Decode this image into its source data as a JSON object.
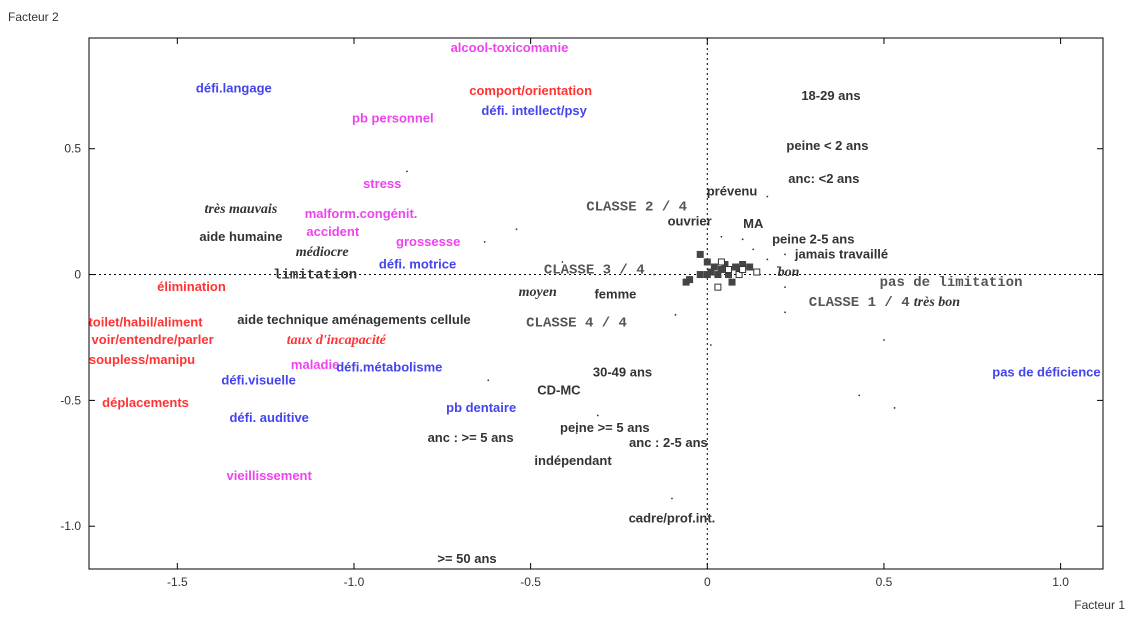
{
  "chart_data": {
    "type": "scatter",
    "xlabel": "Facteur 1",
    "ylabel": "Facteur 2",
    "xlim": [
      -1.75,
      1.12
    ],
    "ylim": [
      -1.17,
      0.94
    ],
    "x_ticks": [
      -1.5,
      -1.0,
      -0.5,
      0,
      0.5,
      1.0
    ],
    "x_tick_labels": [
      "-1.5",
      "-1.0",
      "-0.5",
      "0",
      "0.5",
      "1.0"
    ],
    "y_ticks": [
      -1.0,
      -0.5,
      0,
      0.5
    ],
    "y_tick_labels": [
      "-1.0",
      "-0.5",
      "0",
      "0.5"
    ],
    "reference_lines": "dashed lines at x=0 and y=0",
    "colors": {
      "red": "#ff3333",
      "blue": "#4444ee",
      "magenta": "#ee44ee",
      "dark": "#333333",
      "gray": "#555555"
    },
    "labels": [
      {
        "text": "alcool-toxicomanie",
        "x": -0.56,
        "y": 0.9,
        "color": "magenta",
        "style": "sans"
      },
      {
        "text": "défi.langage",
        "x": -1.34,
        "y": 0.74,
        "color": "blue",
        "style": "sans"
      },
      {
        "text": "comport/orientation",
        "x": -0.5,
        "y": 0.73,
        "color": "red",
        "style": "sans"
      },
      {
        "text": "18-29 ans",
        "x": 0.35,
        "y": 0.71,
        "color": "dark",
        "style": "sans"
      },
      {
        "text": "défi. intellect/psy",
        "x": -0.49,
        "y": 0.65,
        "color": "blue",
        "style": "sans"
      },
      {
        "text": "pb personnel",
        "x": -0.89,
        "y": 0.62,
        "color": "magenta",
        "style": "sans"
      },
      {
        "text": "peine < 2 ans",
        "x": 0.34,
        "y": 0.51,
        "color": "dark",
        "style": "sans"
      },
      {
        "text": "anc: <2 ans",
        "x": 0.33,
        "y": 0.38,
        "color": "dark",
        "style": "sans"
      },
      {
        "text": "stress",
        "x": -0.92,
        "y": 0.36,
        "color": "magenta",
        "style": "sans"
      },
      {
        "text": "prévenu",
        "x": 0.07,
        "y": 0.33,
        "color": "dark",
        "style": "sans"
      },
      {
        "text": "CLASSE 2 / 4",
        "x": -0.2,
        "y": 0.27,
        "color": "gray",
        "style": "mono"
      },
      {
        "text": "très mauvais",
        "x": -1.32,
        "y": 0.26,
        "color": "dark",
        "style": "script"
      },
      {
        "text": "malform.congénit.",
        "x": -0.98,
        "y": 0.24,
        "color": "magenta",
        "style": "sans"
      },
      {
        "text": "ouvrier",
        "x": -0.05,
        "y": 0.21,
        "color": "dark",
        "style": "sans"
      },
      {
        "text": "MA",
        "x": 0.13,
        "y": 0.2,
        "color": "dark",
        "style": "sans"
      },
      {
        "text": "accident",
        "x": -1.06,
        "y": 0.17,
        "color": "magenta",
        "style": "sans"
      },
      {
        "text": "aide humaine",
        "x": -1.32,
        "y": 0.15,
        "color": "dark",
        "style": "sans"
      },
      {
        "text": "peine 2-5 ans",
        "x": 0.3,
        "y": 0.14,
        "color": "dark",
        "style": "sans"
      },
      {
        "text": "grossesse",
        "x": -0.79,
        "y": 0.13,
        "color": "magenta",
        "style": "sans"
      },
      {
        "text": "médiocre",
        "x": -1.09,
        "y": 0.09,
        "color": "dark",
        "style": "script"
      },
      {
        "text": "jamais travaillé",
        "x": 0.38,
        "y": 0.08,
        "color": "dark",
        "style": "sans"
      },
      {
        "text": "défi. motrice",
        "x": -0.82,
        "y": 0.04,
        "color": "blue",
        "style": "sans"
      },
      {
        "text": "limitation",
        "x": -1.11,
        "y": 0.0,
        "color": "dark",
        "style": "mono"
      },
      {
        "text": "CLASSE 3 / 4",
        "x": -0.32,
        "y": 0.02,
        "color": "gray",
        "style": "mono"
      },
      {
        "text": "bon",
        "x": 0.23,
        "y": 0.01,
        "color": "dark",
        "style": "script"
      },
      {
        "text": "pas de limitation",
        "x": 0.69,
        "y": -0.03,
        "color": "gray",
        "style": "mono"
      },
      {
        "text": "élimination",
        "x": -1.46,
        "y": -0.05,
        "color": "red",
        "style": "sans"
      },
      {
        "text": "moyen",
        "x": -0.48,
        "y": -0.07,
        "color": "dark",
        "style": "script"
      },
      {
        "text": "femme",
        "x": -0.26,
        "y": -0.08,
        "color": "dark",
        "style": "sans"
      },
      {
        "text": "CLASSE 1 / 4",
        "x": 0.43,
        "y": -0.11,
        "color": "gray",
        "style": "mono"
      },
      {
        "text": "très bon",
        "x": 0.65,
        "y": -0.11,
        "color": "dark",
        "style": "script"
      },
      {
        "text": "toilet/habil/aliment",
        "x": -1.59,
        "y": -0.19,
        "color": "red",
        "style": "sans"
      },
      {
        "text": "aide technique aménagements cellule",
        "x": -1.0,
        "y": -0.18,
        "color": "dark",
        "style": "sans"
      },
      {
        "text": "CLASSE 4 / 4",
        "x": -0.37,
        "y": -0.19,
        "color": "gray",
        "style": "mono"
      },
      {
        "text": "voir/entendre/parler",
        "x": -1.57,
        "y": -0.26,
        "color": "red",
        "style": "sans"
      },
      {
        "text": "taux d'incapacité",
        "x": -1.05,
        "y": -0.26,
        "color": "red",
        "style": "script"
      },
      {
        "text": "soupless/manipu",
        "x": -1.6,
        "y": -0.34,
        "color": "red",
        "style": "sans"
      },
      {
        "text": "maladie",
        "x": -1.11,
        "y": -0.36,
        "color": "magenta",
        "style": "sans"
      },
      {
        "text": "défi.métabolisme",
        "x": -0.9,
        "y": -0.37,
        "color": "blue",
        "style": "sans"
      },
      {
        "text": "30-49 ans",
        "x": -0.24,
        "y": -0.39,
        "color": "dark",
        "style": "sans"
      },
      {
        "text": "défi.visuelle",
        "x": -1.27,
        "y": -0.42,
        "color": "blue",
        "style": "sans"
      },
      {
        "text": "pas de déficience",
        "x": 0.96,
        "y": -0.39,
        "color": "blue",
        "style": "sans"
      },
      {
        "text": "CD-MC",
        "x": -0.42,
        "y": -0.46,
        "color": "dark",
        "style": "sans"
      },
      {
        "text": "déplacements",
        "x": -1.59,
        "y": -0.51,
        "color": "red",
        "style": "sans"
      },
      {
        "text": "pb dentaire",
        "x": -0.64,
        "y": -0.53,
        "color": "blue",
        "style": "sans"
      },
      {
        "text": "défi. auditive",
        "x": -1.24,
        "y": -0.57,
        "color": "blue",
        "style": "sans"
      },
      {
        "text": "peine >= 5 ans",
        "x": -0.29,
        "y": -0.61,
        "color": "dark",
        "style": "sans"
      },
      {
        "text": "anc : >= 5 ans",
        "x": -0.67,
        "y": -0.65,
        "color": "dark",
        "style": "sans"
      },
      {
        "text": "anc : 2-5 ans",
        "x": -0.11,
        "y": -0.67,
        "color": "dark",
        "style": "sans"
      },
      {
        "text": "indépendant",
        "x": -0.38,
        "y": -0.74,
        "color": "dark",
        "style": "sans"
      },
      {
        "text": "vieillissement",
        "x": -1.24,
        "y": -0.8,
        "color": "magenta",
        "style": "sans"
      },
      {
        "text": "cadre/prof.int.",
        "x": -0.1,
        "y": -0.97,
        "color": "dark",
        "style": "sans"
      },
      {
        "text": ">= 50 ans",
        "x": -0.68,
        "y": -1.13,
        "color": "dark",
        "style": "sans"
      }
    ],
    "filled_points": [
      [
        -0.02,
        0.08
      ],
      [
        0.0,
        0.05
      ],
      [
        0.02,
        0.03
      ],
      [
        0.04,
        0.02
      ],
      [
        0.05,
        0.04
      ],
      [
        0.06,
        0.0
      ],
      [
        0.08,
        0.03
      ],
      [
        0.1,
        0.04
      ],
      [
        0.03,
        0.0
      ],
      [
        0.01,
        0.01
      ],
      [
        0.09,
        0.01
      ],
      [
        0.07,
        -0.03
      ],
      [
        -0.05,
        -0.02
      ],
      [
        -0.06,
        -0.03
      ],
      [
        0.0,
        0.0
      ],
      [
        0.12,
        0.03
      ],
      [
        -0.02,
        0.0
      ]
    ],
    "hollow_points": [
      [
        0.06,
        0.02
      ],
      [
        0.09,
        0.0
      ],
      [
        0.14,
        0.01
      ],
      [
        0.03,
        -0.05
      ],
      [
        0.1,
        0.02
      ],
      [
        0.04,
        0.05
      ]
    ],
    "dots": [
      [
        -0.85,
        0.41
      ],
      [
        -0.54,
        0.18
      ],
      [
        -0.63,
        0.13
      ],
      [
        -0.41,
        0.05
      ],
      [
        -0.15,
        0.0
      ],
      [
        0.04,
        0.15
      ],
      [
        0.1,
        0.14
      ],
      [
        0.13,
        0.1
      ],
      [
        0.17,
        0.06
      ],
      [
        0.17,
        0.31
      ],
      [
        0.22,
        0.08
      ],
      [
        0.2,
        0.03
      ],
      [
        0.22,
        -0.05
      ],
      [
        0.22,
        -0.15
      ],
      [
        0.5,
        -0.26
      ],
      [
        0.43,
        -0.48
      ],
      [
        0.53,
        -0.53
      ],
      [
        0.01,
        -0.28
      ],
      [
        -0.09,
        -0.16
      ],
      [
        -0.62,
        -0.42
      ],
      [
        -0.31,
        -0.56
      ],
      [
        -0.37,
        -0.63
      ],
      [
        -0.1,
        -0.89
      ],
      [
        -0.2,
        -0.97
      ]
    ]
  }
}
